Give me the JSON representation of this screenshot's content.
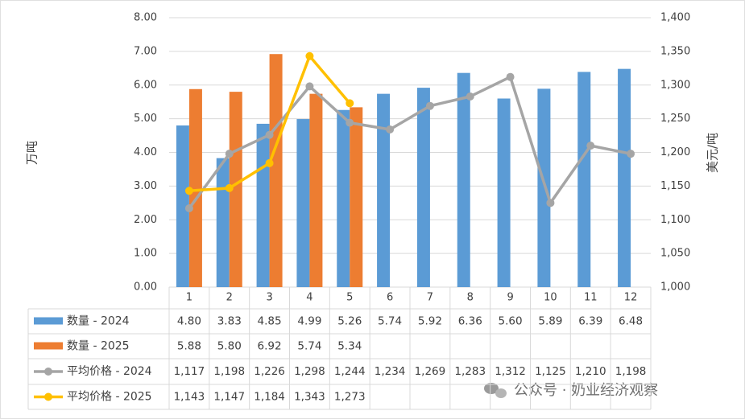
{
  "chart_data": {
    "type": "bar_line_table",
    "y_label": "万吨",
    "y2_label": "美元/吨",
    "categories": [
      "1",
      "2",
      "3",
      "4",
      "5",
      "6",
      "7",
      "8",
      "9",
      "10",
      "11",
      "12"
    ],
    "ylim": [
      0,
      8
    ],
    "yticks": [
      {
        "value": 0,
        "label": "0.00"
      },
      {
        "value": 1,
        "label": "1.00"
      },
      {
        "value": 2,
        "label": "2.00"
      },
      {
        "value": 3,
        "label": "3.00"
      },
      {
        "value": 4,
        "label": "4.00"
      },
      {
        "value": 5,
        "label": "5.00"
      },
      {
        "value": 6,
        "label": "6.00"
      },
      {
        "value": 7,
        "label": "7.00"
      },
      {
        "value": 8,
        "label": "8.00"
      }
    ],
    "y2lim": [
      1000,
      1400
    ],
    "y2ticks": [
      {
        "value": 1000,
        "label": "1,000"
      },
      {
        "value": 1050,
        "label": "1,050"
      },
      {
        "value": 1100,
        "label": "1,100"
      },
      {
        "value": 1150,
        "label": "1,150"
      },
      {
        "value": 1200,
        "label": "1,200"
      },
      {
        "value": 1250,
        "label": "1,250"
      },
      {
        "value": 1300,
        "label": "1,300"
      },
      {
        "value": 1350,
        "label": "1,350"
      },
      {
        "value": 1400,
        "label": "1,400"
      }
    ],
    "grid": true,
    "series": [
      {
        "name": "数量 - 2024",
        "type": "bar",
        "color": "#5b9bd5",
        "values": [
          4.8,
          3.83,
          4.85,
          4.99,
          5.26,
          5.74,
          5.92,
          6.36,
          5.6,
          5.89,
          6.39,
          6.48
        ],
        "value_labels": [
          "4.80",
          "3.83",
          "4.85",
          "4.99",
          "5.26",
          "5.74",
          "5.92",
          "6.36",
          "5.60",
          "5.89",
          "6.39",
          "6.48"
        ]
      },
      {
        "name": "数量 - 2025",
        "type": "bar",
        "color": "#ed7d31",
        "values": [
          5.88,
          5.8,
          6.92,
          5.74,
          5.34,
          null,
          null,
          null,
          null,
          null,
          null,
          null
        ],
        "value_labels": [
          "5.88",
          "5.80",
          "6.92",
          "5.74",
          "5.34",
          null,
          null,
          null,
          null,
          null,
          null,
          null
        ]
      },
      {
        "name": "平均价格 - 2024",
        "type": "line",
        "axis": "y2",
        "color": "#a5a5a5",
        "values": [
          1117,
          1198,
          1226,
          1298,
          1244,
          1234,
          1269,
          1283,
          1312,
          1125,
          1210,
          1198
        ],
        "value_labels": [
          "1,117",
          "1,198",
          "1,226",
          "1,298",
          "1,244",
          "1,234",
          "1,269",
          "1,283",
          "1,312",
          "1,125",
          "1,210",
          "1,198"
        ]
      },
      {
        "name": "平均价格 - 2025",
        "type": "line",
        "axis": "y2",
        "color": "#ffc000",
        "values": [
          1143,
          1147,
          1184,
          1343,
          1273,
          null,
          null,
          null,
          null,
          null,
          null,
          null
        ],
        "value_labels": [
          "1,143",
          "1,147",
          "1,184",
          "1,343",
          "1,273",
          null,
          null,
          null,
          null,
          null,
          null,
          null
        ]
      }
    ]
  },
  "watermark": "公众号 · 奶业经济观察"
}
